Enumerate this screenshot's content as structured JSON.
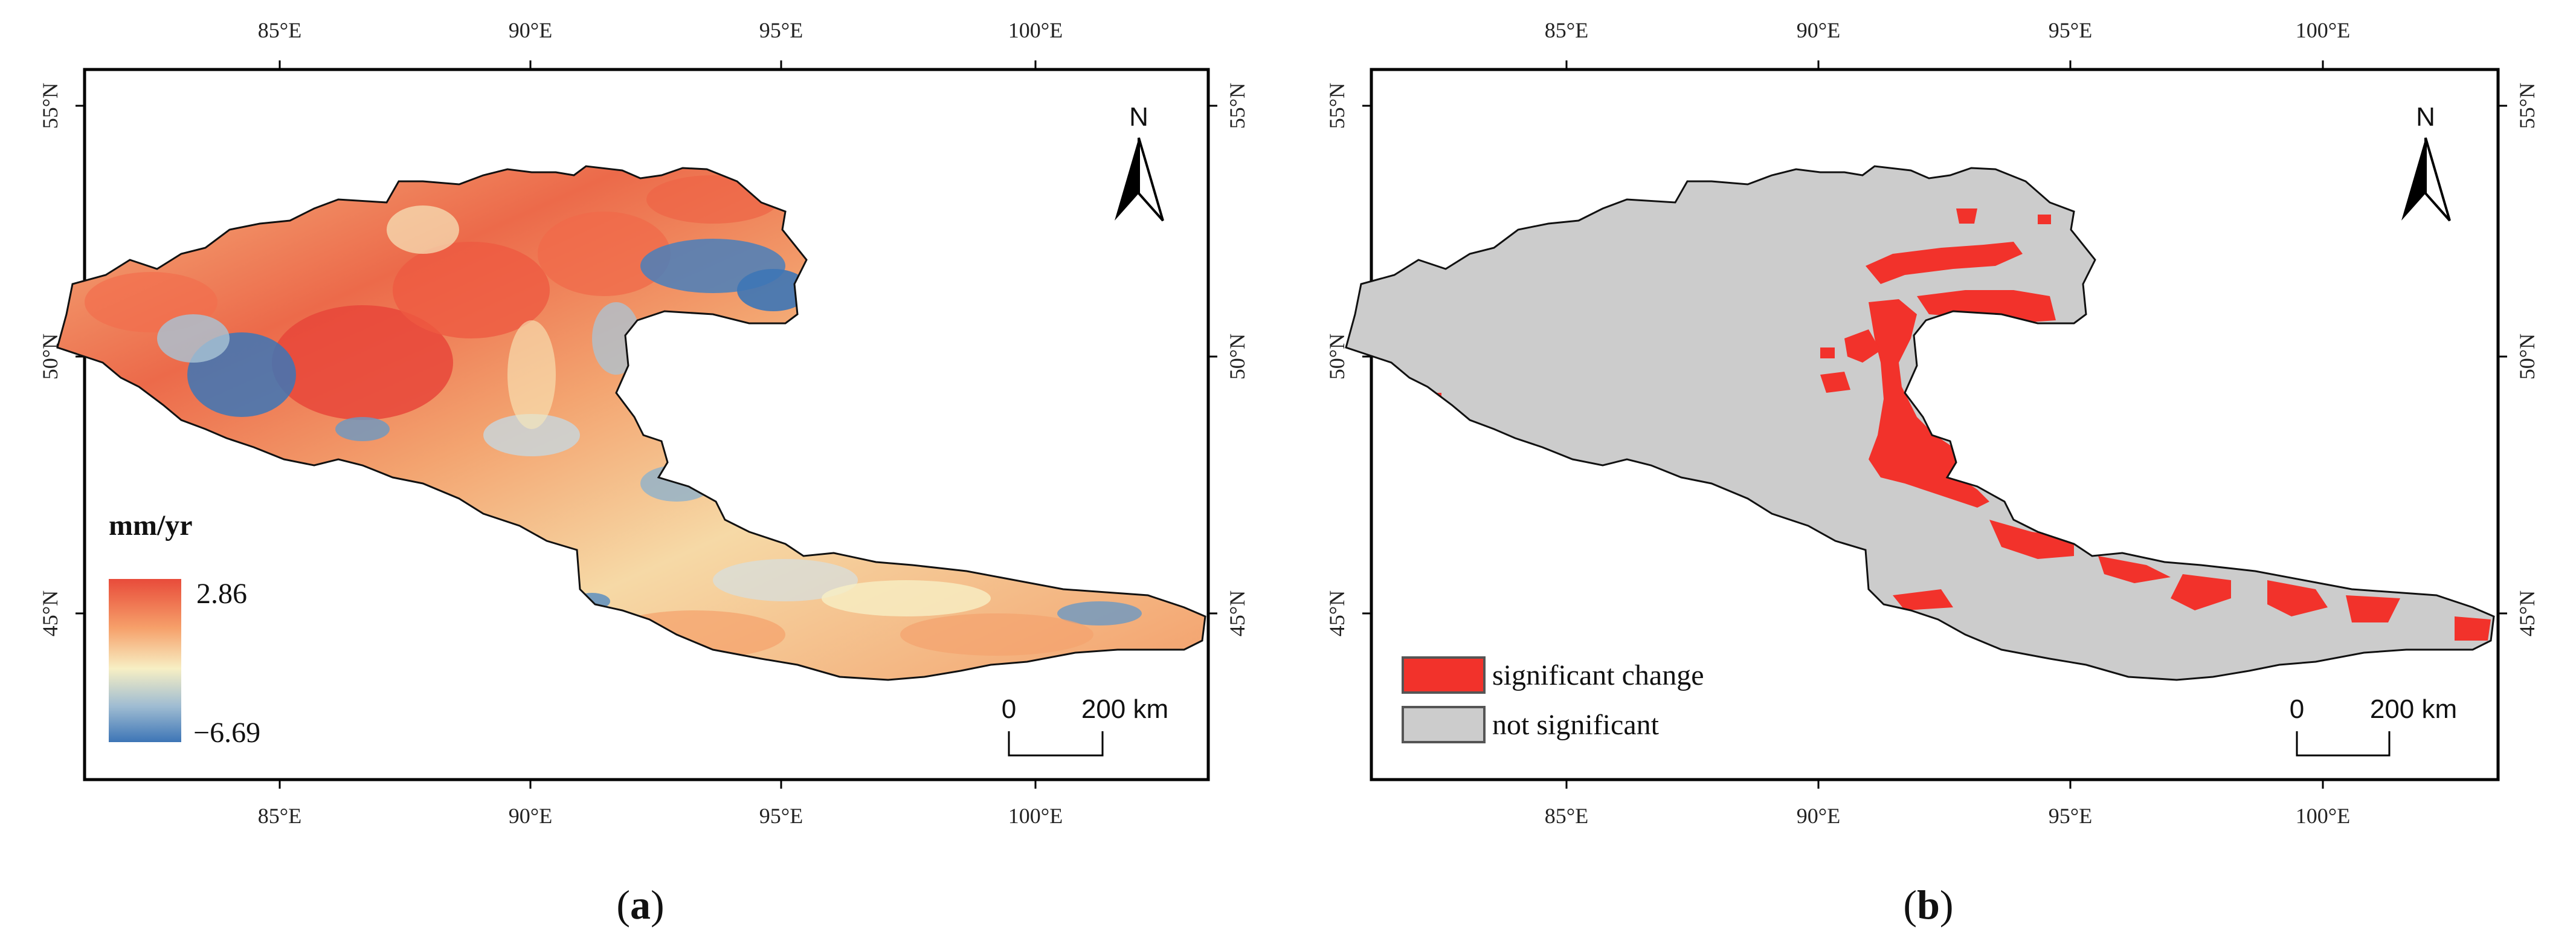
{
  "panels": [
    {
      "id": "a",
      "caption": "a",
      "lon_ticks": [
        "85°E",
        "90°E",
        "95°E",
        "100°E"
      ],
      "lat_ticks": [
        "55°N",
        "50°N",
        "45°N"
      ],
      "north_label": "N",
      "legend": {
        "unit": "mm/yr",
        "max_label": "2.86",
        "min_label": "−6.69",
        "colors": [
          "#e84b3a",
          "#f6a06a",
          "#f7efc4",
          "#9fbcd2",
          "#3d75b6"
        ]
      },
      "scale_bar": {
        "start": "0",
        "end": "200 km"
      }
    },
    {
      "id": "b",
      "caption": "b",
      "lon_ticks": [
        "85°E",
        "90°E",
        "95°E",
        "100°E"
      ],
      "lat_ticks": [
        "55°N",
        "50°N",
        "45°N"
      ],
      "north_label": "N",
      "legend": {
        "items": [
          {
            "label": "significant change",
            "color": "#f2322b"
          },
          {
            "label": "not significant",
            "color": "#cccccc"
          }
        ]
      },
      "scale_bar": {
        "start": "0",
        "end": "200 km"
      }
    }
  ]
}
